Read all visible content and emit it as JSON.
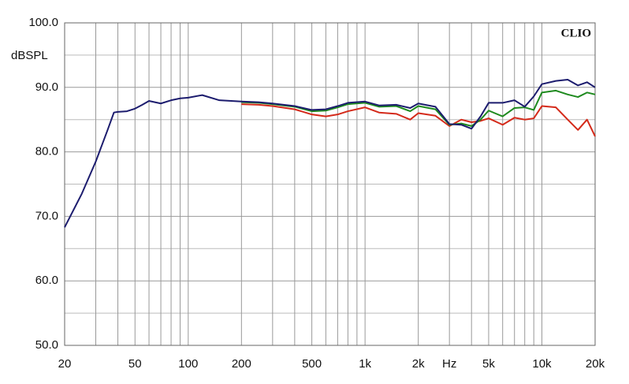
{
  "chart_data": {
    "type": "line",
    "y_label": "dBSPL",
    "annotation": "CLIO",
    "log_x": true,
    "grid": true,
    "xlim": [
      20,
      20000
    ],
    "ylim": [
      50,
      100
    ],
    "xticks": [
      20,
      50,
      100,
      200,
      500,
      {
        "value": 1000,
        "label": "1k"
      },
      {
        "value": 2000,
        "label": "2k"
      },
      {
        "value": 3000,
        "label": "Hz"
      },
      {
        "value": 5000,
        "label": "5k"
      },
      {
        "value": 10000,
        "label": "10k"
      },
      {
        "value": 20000,
        "label": "20k"
      }
    ],
    "x_minor_ticks": [
      30,
      40,
      60,
      70,
      80,
      90,
      300,
      400,
      600,
      700,
      800,
      900,
      4000,
      6000,
      7000,
      8000,
      9000
    ],
    "yticks": [
      {
        "value": 50,
        "label": "50.0"
      },
      {
        "value": 60,
        "label": "60.0"
      },
      {
        "value": 70,
        "label": "70.0"
      },
      {
        "value": 80,
        "label": "80.0"
      },
      {
        "value": 90,
        "label": "90.0"
      },
      {
        "value": 100,
        "label": "100.0"
      }
    ],
    "y_minor_ticks": [
      55,
      65,
      75,
      85,
      95
    ],
    "x": [
      20,
      25,
      30,
      35,
      38,
      40,
      45,
      50,
      55,
      60,
      70,
      80,
      90,
      100,
      120,
      150,
      200,
      250,
      300,
      400,
      500,
      600,
      700,
      800,
      1000,
      1200,
      1500,
      1800,
      2000,
      2500,
      3000,
      3500,
      4000,
      4500,
      5000,
      6000,
      7000,
      8000,
      9000,
      10000,
      12000,
      14000,
      16000,
      18000,
      20000
    ],
    "series": [
      {
        "color": "#d42a1a",
        "values": [
          null,
          null,
          null,
          null,
          null,
          null,
          null,
          null,
          null,
          null,
          null,
          null,
          null,
          null,
          null,
          null,
          87.4,
          87.3,
          87.1,
          86.6,
          85.8,
          85.5,
          85.8,
          86.3,
          86.9,
          86.1,
          85.9,
          85.0,
          86.0,
          85.6,
          84.0,
          85.0,
          84.6,
          84.8,
          85.2,
          84.2,
          85.3,
          85.0,
          85.2,
          87.1,
          86.9,
          85.0,
          83.4,
          85.0,
          82.4
        ]
      },
      {
        "color": "#1e8a1e",
        "values": [
          null,
          null,
          null,
          null,
          null,
          null,
          null,
          null,
          null,
          null,
          null,
          null,
          null,
          null,
          null,
          null,
          87.7,
          87.6,
          87.4,
          87.0,
          86.3,
          86.4,
          86.9,
          87.4,
          87.6,
          87.0,
          87.1,
          86.3,
          87.1,
          86.6,
          84.2,
          84.4,
          84.0,
          85.0,
          86.4,
          85.5,
          86.8,
          86.9,
          86.5,
          89.2,
          89.5,
          88.9,
          88.5,
          89.2,
          88.9
        ]
      },
      {
        "color": "#1c1c6e",
        "values": [
          68.3,
          73.5,
          78.5,
          83.4,
          86.1,
          86.2,
          86.3,
          86.7,
          87.3,
          87.9,
          87.5,
          88.0,
          88.3,
          88.4,
          88.8,
          88.0,
          87.8,
          87.7,
          87.5,
          87.1,
          86.5,
          86.6,
          87.1,
          87.6,
          87.8,
          87.2,
          87.3,
          86.8,
          87.5,
          87.0,
          84.3,
          84.2,
          83.6,
          85.5,
          87.6,
          87.6,
          88.0,
          87.0,
          88.6,
          90.5,
          91.0,
          91.2,
          90.3,
          90.8,
          90.0
        ]
      }
    ]
  }
}
